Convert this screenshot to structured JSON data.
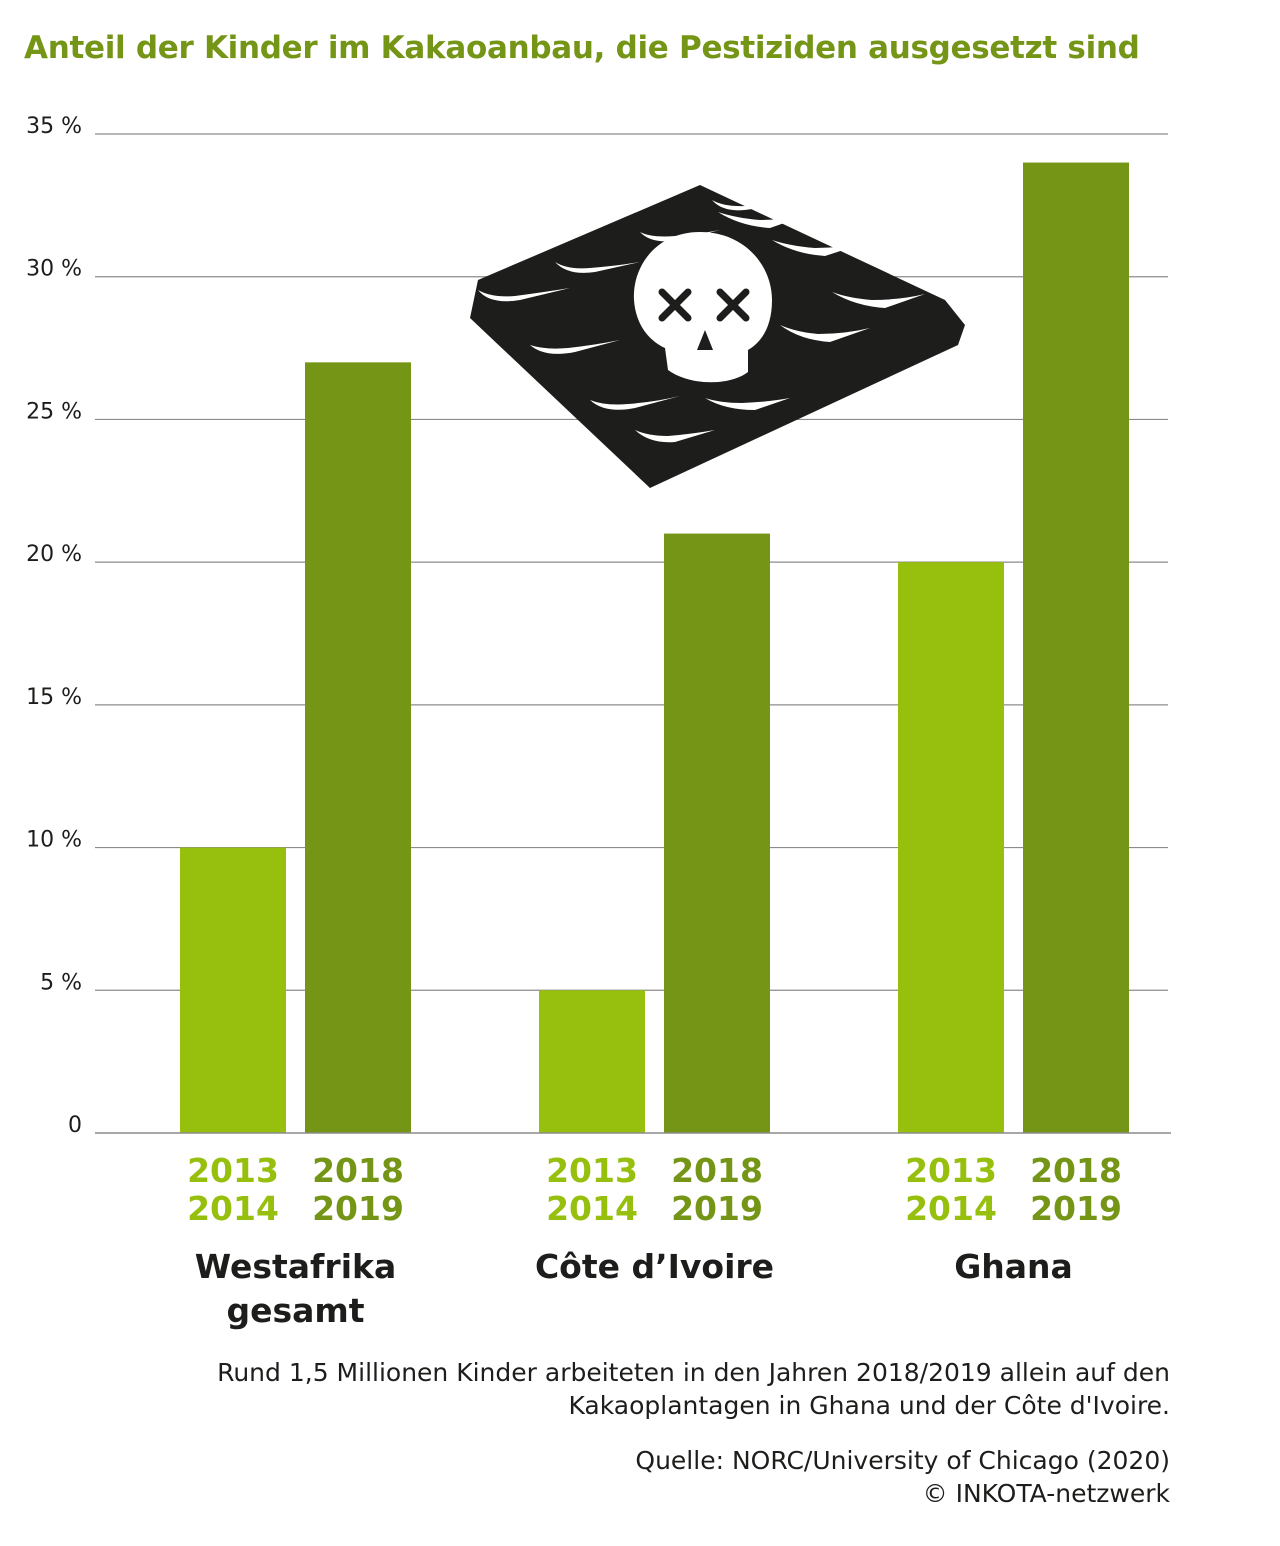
{
  "title": "Anteil der Kinder im Kakaoanbau, die Pestiziden ausgesetzt sind",
  "note": {
    "line1": "Rund 1,5 Millionen Kinder arbeiteten in den Jahren 2018/2019 allein auf den",
    "line2": "Kakaoplantagen in Ghana und der Côte d'Ivoire."
  },
  "source": {
    "line1": "Quelle: NORC/University of Chicago (2020)",
    "line2": "© INKOTA-netzwerk"
  },
  "illustration": {
    "icon": "chocolate-bar-skull-icon"
  },
  "colors": {
    "series_2013_2014": "#97bf0d",
    "series_2018_2019": "#749515",
    "title": "#749515",
    "gridline": "#8c8c8c",
    "chocolate": "#1d1d1b"
  },
  "chart_data": {
    "type": "bar",
    "categories": [
      [
        "Westafrika",
        "gesamt"
      ],
      [
        "Côte d’Ivoire"
      ],
      [
        "Ghana"
      ]
    ],
    "series": [
      {
        "name": [
          "2013",
          "2014"
        ],
        "values": [
          10,
          5,
          20
        ],
        "color": "#97bf0d"
      },
      {
        "name": [
          "2018",
          "2019"
        ],
        "values": [
          27,
          21,
          34
        ],
        "color": "#749515"
      }
    ],
    "ylim": [
      0,
      35
    ],
    "yticks": [
      {
        "value": 0,
        "label": "0"
      },
      {
        "value": 5,
        "label": "5 %"
      },
      {
        "value": 10,
        "label": "10 %"
      },
      {
        "value": 15,
        "label": "15 %"
      },
      {
        "value": 20,
        "label": "20 %"
      },
      {
        "value": 25,
        "label": "25 %"
      },
      {
        "value": 30,
        "label": "30 %"
      },
      {
        "value": 35,
        "label": "35 %"
      }
    ],
    "grid": true,
    "legend": "none"
  }
}
